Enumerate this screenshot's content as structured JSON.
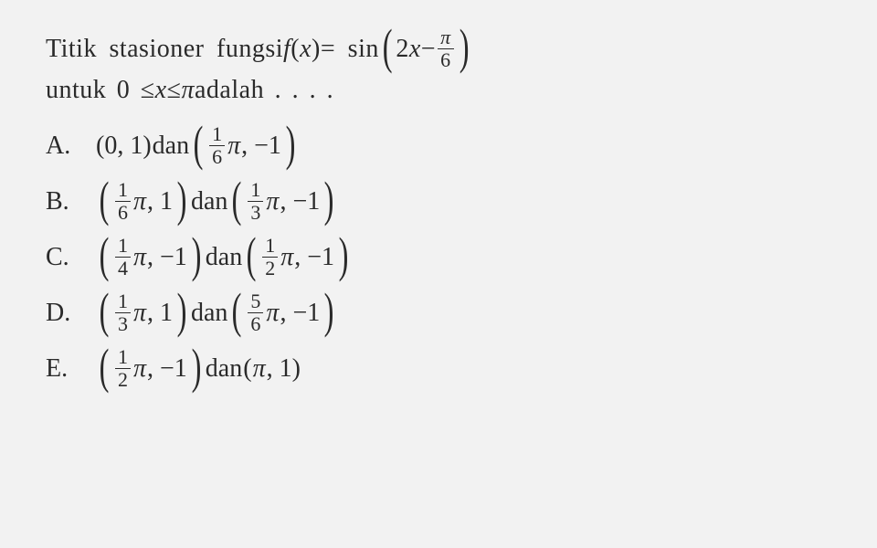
{
  "question": {
    "line1_part1": "Titik stasioner fungsi ",
    "fx": "f",
    "fx_paren": "(",
    "fx_var": "x",
    "fx_cparen": ")",
    "eq": " = sin ",
    "arg_2x": "2",
    "arg_x": "x",
    "minus": " − ",
    "pi": "π",
    "six": "6",
    "line2_part1": "untuk 0 ≤ ",
    "line2_x": "x",
    "line2_part2": " ≤ ",
    "line2_pi": "π",
    "line2_part3": " adalah . . . ."
  },
  "letters": {
    "A": "A.",
    "B": "B.",
    "C": "C.",
    "D": "D.",
    "E": "E."
  },
  "opts": {
    "A": {
      "p1_open": "(0, 1)",
      "dan": " dan ",
      "f_num": "1",
      "f_den": "6",
      "val": ", −1"
    },
    "B": {
      "f1n": "1",
      "f1d": "6",
      "v1": ", 1",
      "dan": " dan ",
      "f2n": "1",
      "f2d": "3",
      "v2": ", −1"
    },
    "C": {
      "f1n": "1",
      "f1d": "4",
      "v1": ", −1",
      "dan": " dan ",
      "f2n": "1",
      "f2d": "2",
      "v2": ", −1"
    },
    "D": {
      "f1n": "1",
      "f1d": "3",
      "v1": ", 1",
      "dan": " dan ",
      "f2n": "5",
      "f2d": "6",
      "v2": ", −1"
    },
    "E": {
      "f1n": "1",
      "f1d": "2",
      "v1": ", −1",
      "dan": " dan ",
      "p2": "(",
      "pi": "π",
      "v2": ", 1)"
    }
  },
  "pi_sym": "π"
}
